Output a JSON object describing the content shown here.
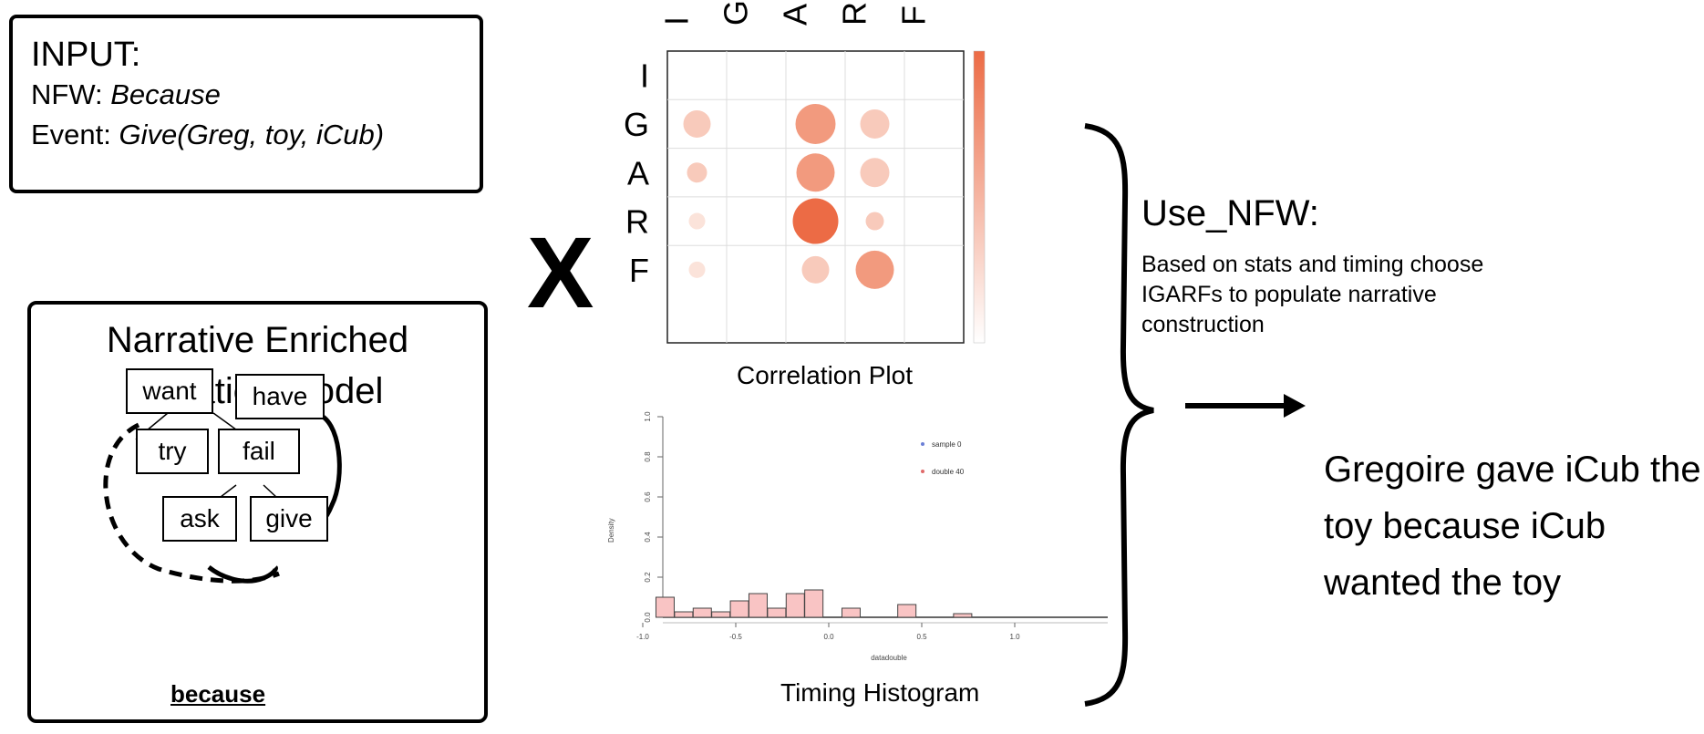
{
  "input": {
    "title": "INPUT:",
    "nfw_label": "NFW: ",
    "nfw_value": "Because",
    "event_label": "Event: ",
    "event_value": "Give(Greg, toy, iCub)"
  },
  "model": {
    "title_line1": "Narrative Enriched",
    "title_line2": "Situation Model",
    "nodes": {
      "want": "want",
      "have": "have",
      "try": "try",
      "fail": "fail",
      "ask": "ask",
      "give": "give"
    },
    "because": "because"
  },
  "operator": "X",
  "correlation": {
    "caption": "Correlation Plot",
    "labels": [
      "I",
      "G",
      "A",
      "R",
      "F"
    ],
    "col_labels": [
      "I",
      "G",
      "A",
      "R",
      "F"
    ]
  },
  "histogram": {
    "caption": "Timing Histogram",
    "legend": [
      "sample 0",
      "double 40"
    ],
    "y_ticks": [
      "1.0",
      "0.8",
      "0.6",
      "0.4",
      "0.2",
      "0.0"
    ],
    "x_ticks": [
      "-1.0",
      "-0.5",
      "0.0",
      "0.5",
      "1.0"
    ],
    "ylabel": "Density",
    "xlabel": "datadouble"
  },
  "use_nfw": {
    "title": "Use_NFW:",
    "description": "Based on stats and timing choose IGARFs to populate narrative construction"
  },
  "result": "Gregoire gave iCub the toy because iCub wanted the toy",
  "colors": {
    "bubble_strong": "#ec6b45",
    "bubble_mid": "#f29a7e",
    "bubble_light": "#f8cabb",
    "bubble_faint": "#fbe3da"
  }
}
